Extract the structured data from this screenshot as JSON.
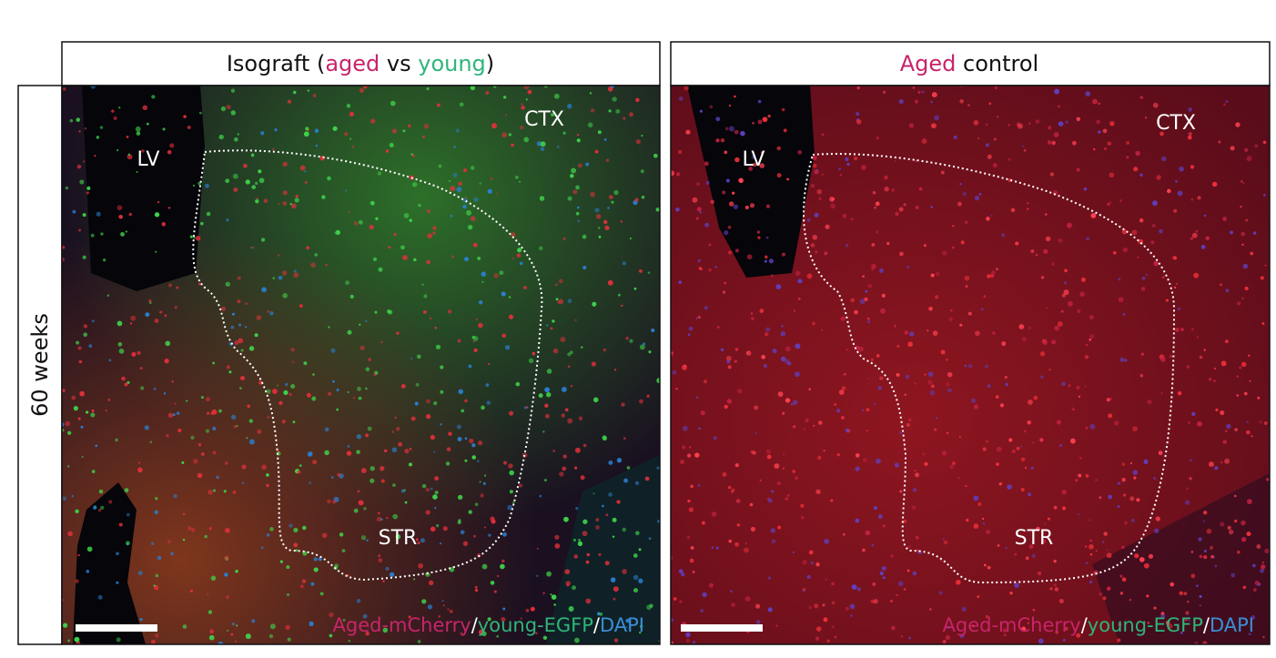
{
  "row_label": "60 weeks",
  "colors": {
    "aged": "#c8246a",
    "young": "#2fb57a",
    "dapi": "#3a8fd6",
    "neutral": "#111111",
    "separator": "#ffffff"
  },
  "panels": [
    {
      "title": [
        {
          "text": "Isograft (",
          "color": "neutral"
        },
        {
          "text": "aged",
          "color": "aged"
        },
        {
          "text": " vs ",
          "color": "neutral"
        },
        {
          "text": "young",
          "color": "young"
        },
        {
          "text": ")",
          "color": "neutral"
        }
      ],
      "regions": {
        "lv": "LV",
        "ctx": "CTX",
        "str": "STR"
      },
      "legend": [
        {
          "text": "Aged-mCherry",
          "color": "aged"
        },
        {
          "text": "/",
          "color": "separator"
        },
        {
          "text": "young-EGFP",
          "color": "young"
        },
        {
          "text": "/",
          "color": "separator"
        },
        {
          "text": "DAPI",
          "color": "dapi"
        }
      ]
    },
    {
      "title": [
        {
          "text": "Aged",
          "color": "aged"
        },
        {
          "text": " control",
          "color": "neutral"
        }
      ],
      "regions": {
        "lv": "LV",
        "ctx": "CTX",
        "str": "STR"
      },
      "legend": [
        {
          "text": "Aged-mCherry",
          "color": "aged"
        },
        {
          "text": "/",
          "color": "separator"
        },
        {
          "text": "young-EGFP",
          "color": "young"
        },
        {
          "text": "/",
          "color": "separator"
        },
        {
          "text": "DAPI",
          "color": "dapi"
        }
      ]
    }
  ]
}
